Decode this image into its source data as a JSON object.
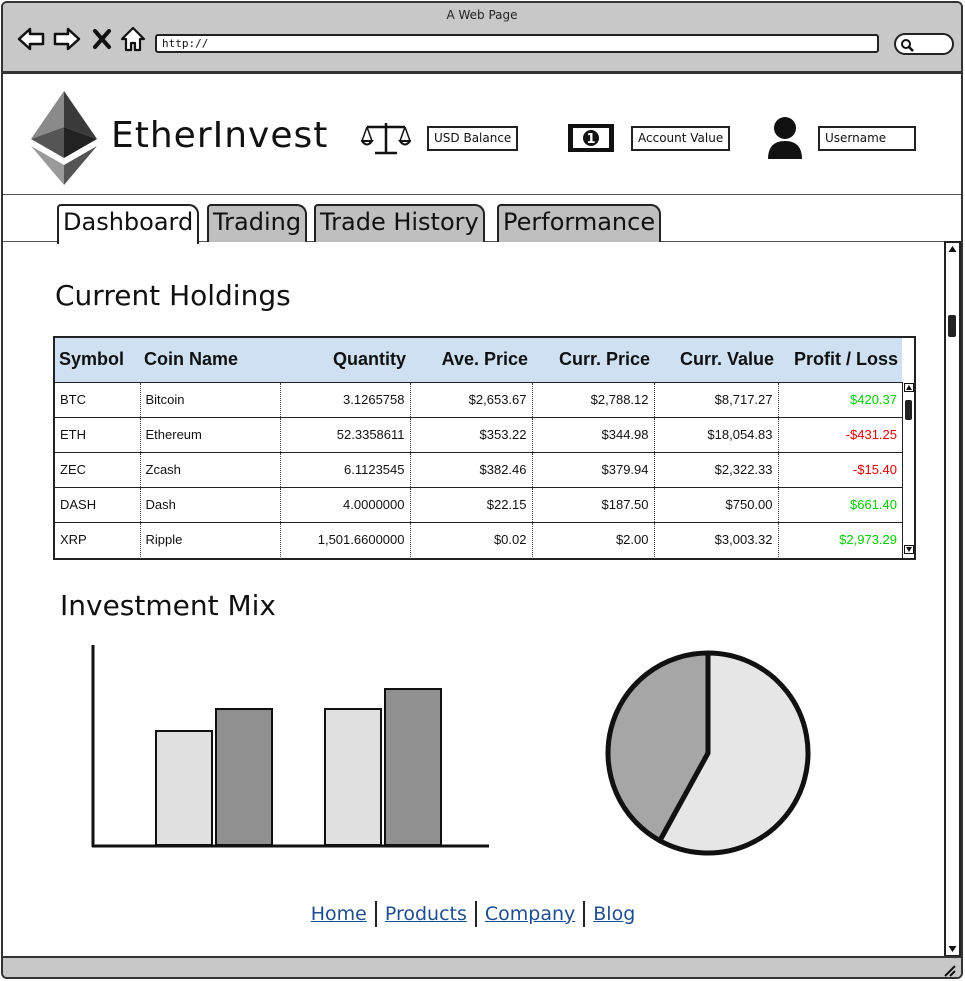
{
  "window": {
    "title": "A Web Page",
    "url": "http://"
  },
  "header": {
    "brand": "EtherInvest",
    "usd_balance_label": "USD Balance",
    "account_value_label": "Account Value",
    "username_label": "Username"
  },
  "tabs": [
    {
      "label": "Dashboard",
      "active": true
    },
    {
      "label": "Trading",
      "active": false
    },
    {
      "label": "Trade History",
      "active": false
    },
    {
      "label": "Performance",
      "active": false
    }
  ],
  "holdings": {
    "title": "Current Holdings",
    "columns": [
      "Symbol",
      "Coin Name",
      "Quantity",
      "Ave. Price",
      "Curr. Price",
      "Curr. Value",
      "Profit / Loss"
    ],
    "rows": [
      {
        "symbol": "BTC",
        "name": "Bitcoin",
        "quantity": "3.1265758",
        "ave_price": "$2,653.67",
        "curr_price": "$2,788.12",
        "curr_value": "$8,717.27",
        "pl": "$420.37",
        "pl_sign": "pos"
      },
      {
        "symbol": "ETH",
        "name": "Ethereum",
        "quantity": "52.3358611",
        "ave_price": "$353.22",
        "curr_price": "$344.98",
        "curr_value": "$18,054.83",
        "pl": "-$431.25",
        "pl_sign": "neg"
      },
      {
        "symbol": "ZEC",
        "name": "Zcash",
        "quantity": "6.1123545",
        "ave_price": "$382.46",
        "curr_price": "$379.94",
        "curr_value": "$2,322.33",
        "pl": "-$15.40",
        "pl_sign": "neg"
      },
      {
        "symbol": "DASH",
        "name": "Dash",
        "quantity": "4.0000000",
        "ave_price": "$22.15",
        "curr_price": "$187.50",
        "curr_value": "$750.00",
        "pl": "$661.40",
        "pl_sign": "pos"
      },
      {
        "symbol": "XRP",
        "name": "Ripple",
        "quantity": "1,501.6600000",
        "ave_price": "$0.02",
        "curr_price": "$2.00",
        "curr_value": "$3,003.32",
        "pl": "$2,973.29",
        "pl_sign": "pos"
      }
    ]
  },
  "investment_mix": {
    "title": "Investment Mix"
  },
  "chart_data": [
    {
      "type": "bar",
      "categories": [
        "",
        ""
      ],
      "series": [
        {
          "values": [
            0.57,
            0.68
          ],
          "color": "#e0e0e0"
        },
        {
          "values": [
            0.68,
            0.78
          ],
          "color": "#909090"
        }
      ],
      "ylim": [
        0,
        1
      ],
      "title": "",
      "xlabel": "",
      "ylabel": ""
    },
    {
      "type": "pie",
      "slices": [
        {
          "value": 0.58,
          "color": "#e6e6e6"
        },
        {
          "value": 0.42,
          "color": "#a6a6a6"
        }
      ],
      "title": ""
    }
  ],
  "footer": {
    "links": [
      "Home",
      "Products",
      "Company",
      "Blog"
    ]
  },
  "icons": {
    "back": "arrow-left-icon",
    "forward": "arrow-right-icon",
    "stop": "close-icon",
    "home": "home-icon",
    "search": "search-icon",
    "balance": "scale-icon",
    "money": "banknote-icon",
    "user": "user-icon"
  }
}
